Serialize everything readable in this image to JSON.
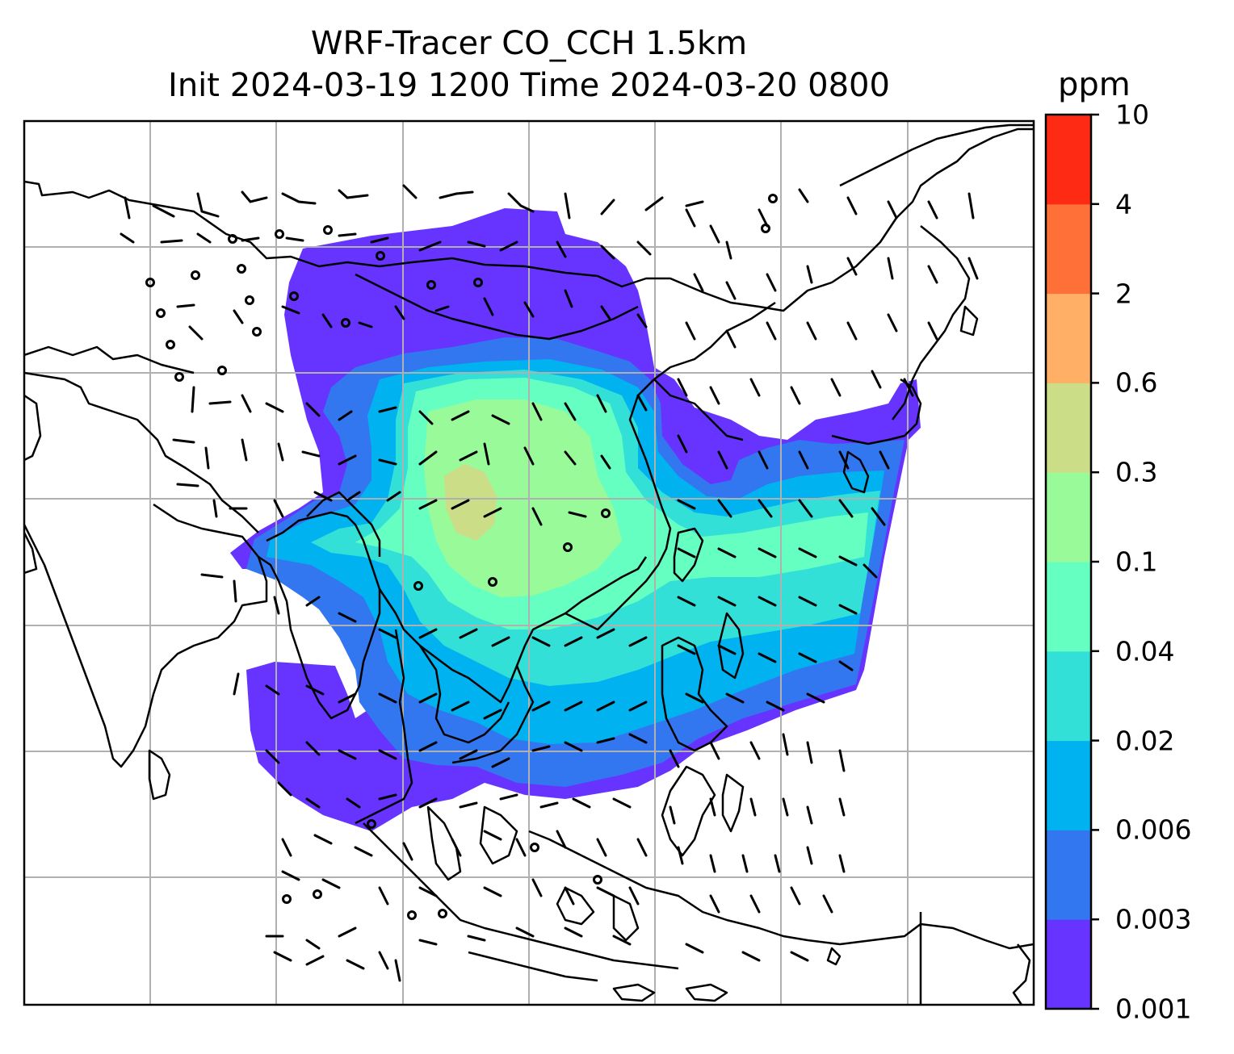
{
  "title": {
    "line1": "WRF-Tracer CO_CCH 1.5km",
    "line2": "Init 2024-03-19 1200 Time 2024-03-20 0800"
  },
  "colorbar": {
    "unit": "ppm",
    "levels": [
      "0.001",
      "0.003",
      "0.006",
      "0.02",
      "0.04",
      "0.1",
      "0.3",
      "0.6",
      "2",
      "4",
      "10"
    ],
    "colors": [
      "#6633ff",
      "#3377f0",
      "#00b3f0",
      "#33e0d8",
      "#66ffc2",
      "#99fa99",
      "#ccdd88",
      "#ffb066",
      "#ff7038",
      "#ff2a14"
    ]
  },
  "map": {
    "field": "CO_CCH tracer concentration with wind barbs at 1.5km",
    "gridlines": true,
    "coastline_color": "#000000",
    "grid_color": "#b0b0b0"
  }
}
